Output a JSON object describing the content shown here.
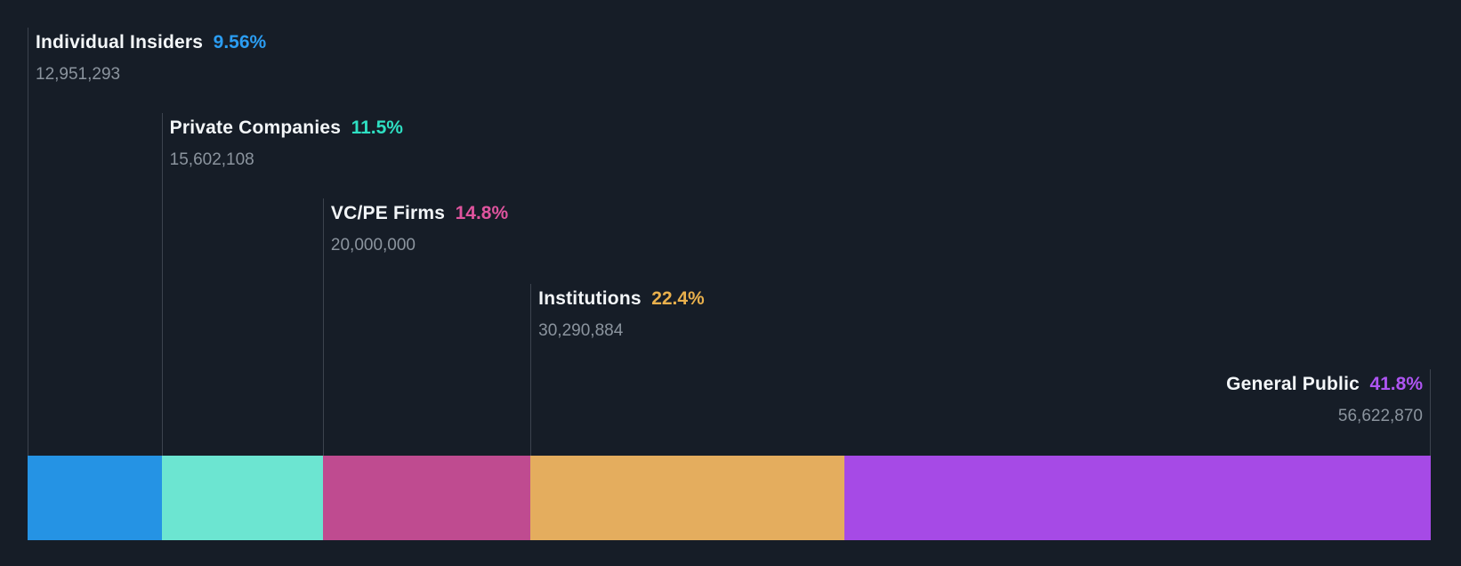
{
  "chart_data": {
    "type": "bar",
    "variant": "ownership-breakdown-stacked-horizontal",
    "title": "",
    "xlabel": "",
    "ylabel": "",
    "legend": "none",
    "grid": false,
    "categories": [
      "Individual Insiders",
      "Private Companies",
      "VC/PE Firms",
      "Institutions",
      "General Public"
    ],
    "values": [
      9.56,
      11.5,
      14.8,
      22.4,
      41.8
    ],
    "series": [
      {
        "name": "Individual Insiders",
        "percent": 9.56,
        "percent_label": "9.56%",
        "shares": "12,951,293",
        "bar_color": "#2593e4",
        "percent_color": "#2b9df2"
      },
      {
        "name": "Private Companies",
        "percent": 11.5,
        "percent_label": "11.5%",
        "shares": "15,602,108",
        "bar_color": "#6ce5d1",
        "percent_color": "#2edfc2"
      },
      {
        "name": "VC/PE Firms",
        "percent": 14.8,
        "percent_label": "14.8%",
        "shares": "20,000,000",
        "bar_color": "#bf4b90",
        "percent_color": "#df549e"
      },
      {
        "name": "Institutions",
        "percent": 22.4,
        "percent_label": "22.4%",
        "shares": "30,290,884",
        "bar_color": "#e4ad5e",
        "percent_color": "#e9b04c"
      },
      {
        "name": "General Public",
        "percent": 41.8,
        "percent_label": "41.8%",
        "shares": "56,622,870",
        "bar_color": "#a64ae6",
        "percent_color": "#ae55f2"
      }
    ],
    "colors": {
      "background": "#161d27",
      "leader_line": "#3c434e",
      "label_text": "#f3f6f8",
      "shares_text": "#8b949e"
    }
  }
}
